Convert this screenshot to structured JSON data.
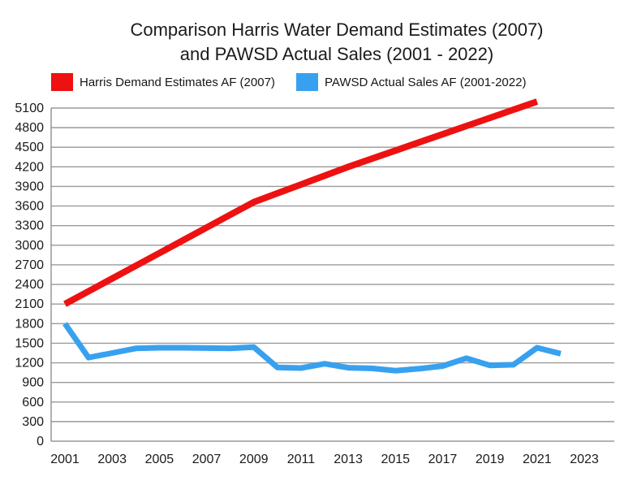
{
  "title": {
    "line1": "Comparison Harris Water Demand Estimates (2007)",
    "line2": "and PAWSD Actual Sales (2001 - 2022)"
  },
  "legend": {
    "items": [
      {
        "label": "Harris Demand Estimates AF (2007)",
        "color": "#ee1111"
      },
      {
        "label": "PAWSD Actual Sales AF (2001-2022)",
        "color": "#38a1ef"
      }
    ]
  },
  "chart_data": {
    "type": "line",
    "title": "Comparison Harris Water Demand Estimates (2007) and PAWSD Actual Sales (2001 - 2022)",
    "xlabel": "",
    "ylabel": "",
    "xlim": [
      2001,
      2023
    ],
    "x_ticks": [
      2001,
      2003,
      2005,
      2007,
      2009,
      2011,
      2013,
      2015,
      2017,
      2019,
      2021,
      2023
    ],
    "ylim": [
      0,
      5100
    ],
    "y_tick_step": 300,
    "grid": "horizontal",
    "legend_position": "top",
    "series": [
      {
        "name": "Harris Demand Estimates AF (2007)",
        "color": "#ee1111",
        "stroke_width": 8,
        "x": [
          2001,
          2002,
          2003,
          2004,
          2005,
          2006,
          2007,
          2008,
          2009,
          2010,
          2011,
          2012,
          2013,
          2014,
          2015,
          2016,
          2017,
          2018,
          2019,
          2020,
          2021
        ],
        "values": [
          2100,
          2295,
          2490,
          2685,
          2880,
          3075,
          3270,
          3465,
          3660,
          3795,
          3930,
          4065,
          4200,
          4325,
          4450,
          4575,
          4700,
          4825,
          4950,
          5075,
          5200
        ]
      },
      {
        "name": "PAWSD Actual Sales AF (2001-2022)",
        "color": "#38a1ef",
        "stroke_width": 7,
        "x": [
          2001,
          2002,
          2003,
          2004,
          2005,
          2006,
          2007,
          2008,
          2009,
          2010,
          2011,
          2012,
          2013,
          2014,
          2015,
          2016,
          2017,
          2018,
          2019,
          2020,
          2021,
          2022
        ],
        "values": [
          1800,
          1280,
          1350,
          1420,
          1430,
          1430,
          1425,
          1420,
          1440,
          1130,
          1120,
          1185,
          1125,
          1115,
          1080,
          1110,
          1150,
          1270,
          1160,
          1170,
          1430,
          1340
        ]
      }
    ],
    "colors": {
      "gridline": "#9a9a9a",
      "axis": "#8f8f8f",
      "text": "#1a1a1a"
    }
  }
}
